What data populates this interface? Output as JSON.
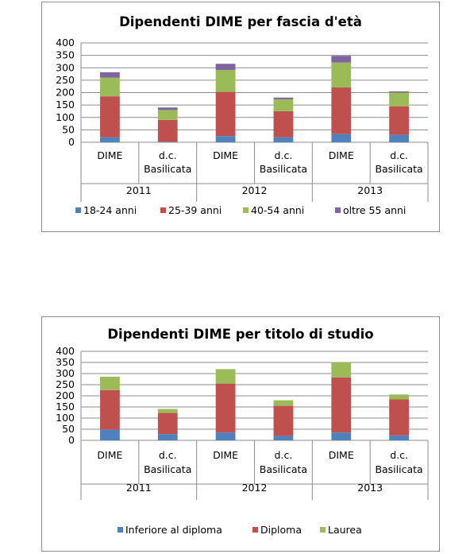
{
  "chart_data": [
    {
      "type": "bar",
      "stacked": true,
      "title": "Dipendenti DIME per fascia d'età",
      "groups": [
        "2011",
        "2012",
        "2013"
      ],
      "categories": [
        [
          "DIME",
          ""
        ],
        [
          "d.c.",
          "Basilicata"
        ],
        [
          "DIME",
          ""
        ],
        [
          "d.c.",
          "Basilicata"
        ],
        [
          "DIME",
          ""
        ],
        [
          "d.c.",
          "Basilicata"
        ]
      ],
      "ylim": [
        0,
        400
      ],
      "yticks": [
        "0",
        "50",
        "100",
        "150",
        "200",
        "250",
        "300",
        "350",
        "400"
      ],
      "grid": true,
      "legend_position": "bottom",
      "series": [
        {
          "name": "18-24 anni",
          "color": "#4f81bd",
          "values": [
            20,
            2,
            25,
            20,
            33,
            30
          ]
        },
        {
          "name": "25-39 anni",
          "color": "#c0504d",
          "values": [
            165,
            88,
            178,
            105,
            188,
            115
          ]
        },
        {
          "name": "40-54 anni",
          "color": "#9bbb59",
          "values": [
            75,
            40,
            88,
            48,
            100,
            55
          ]
        },
        {
          "name": "oltre 55 anni",
          "color": "#8064a2",
          "values": [
            22,
            10,
            25,
            7,
            27,
            5
          ]
        }
      ]
    },
    {
      "type": "bar",
      "stacked": true,
      "title": "Dipendenti DIME per titolo di studio",
      "groups": [
        "2011",
        "2012",
        "2013"
      ],
      "categories": [
        [
          "DIME",
          ""
        ],
        [
          "d.c.",
          "Basilicata"
        ],
        [
          "DIME",
          ""
        ],
        [
          "d.c.",
          "Basilicata"
        ],
        [
          "DIME",
          ""
        ],
        [
          "d.c.",
          "Basilicata"
        ]
      ],
      "ylim": [
        0,
        400
      ],
      "yticks": [
        "0",
        "50",
        "100",
        "150",
        "200",
        "250",
        "300",
        "350",
        "400"
      ],
      "grid": true,
      "legend_position": "bottom",
      "series": [
        {
          "name": "Inferiore al diploma",
          "color": "#4f81bd",
          "values": [
            48,
            28,
            35,
            20,
            35,
            22
          ]
        },
        {
          "name": "Diploma",
          "color": "#c0504d",
          "values": [
            178,
            95,
            220,
            135,
            248,
            162
          ]
        },
        {
          "name": "Laurea",
          "color": "#9bbb59",
          "values": [
            60,
            18,
            65,
            25,
            68,
            22
          ]
        }
      ]
    }
  ]
}
